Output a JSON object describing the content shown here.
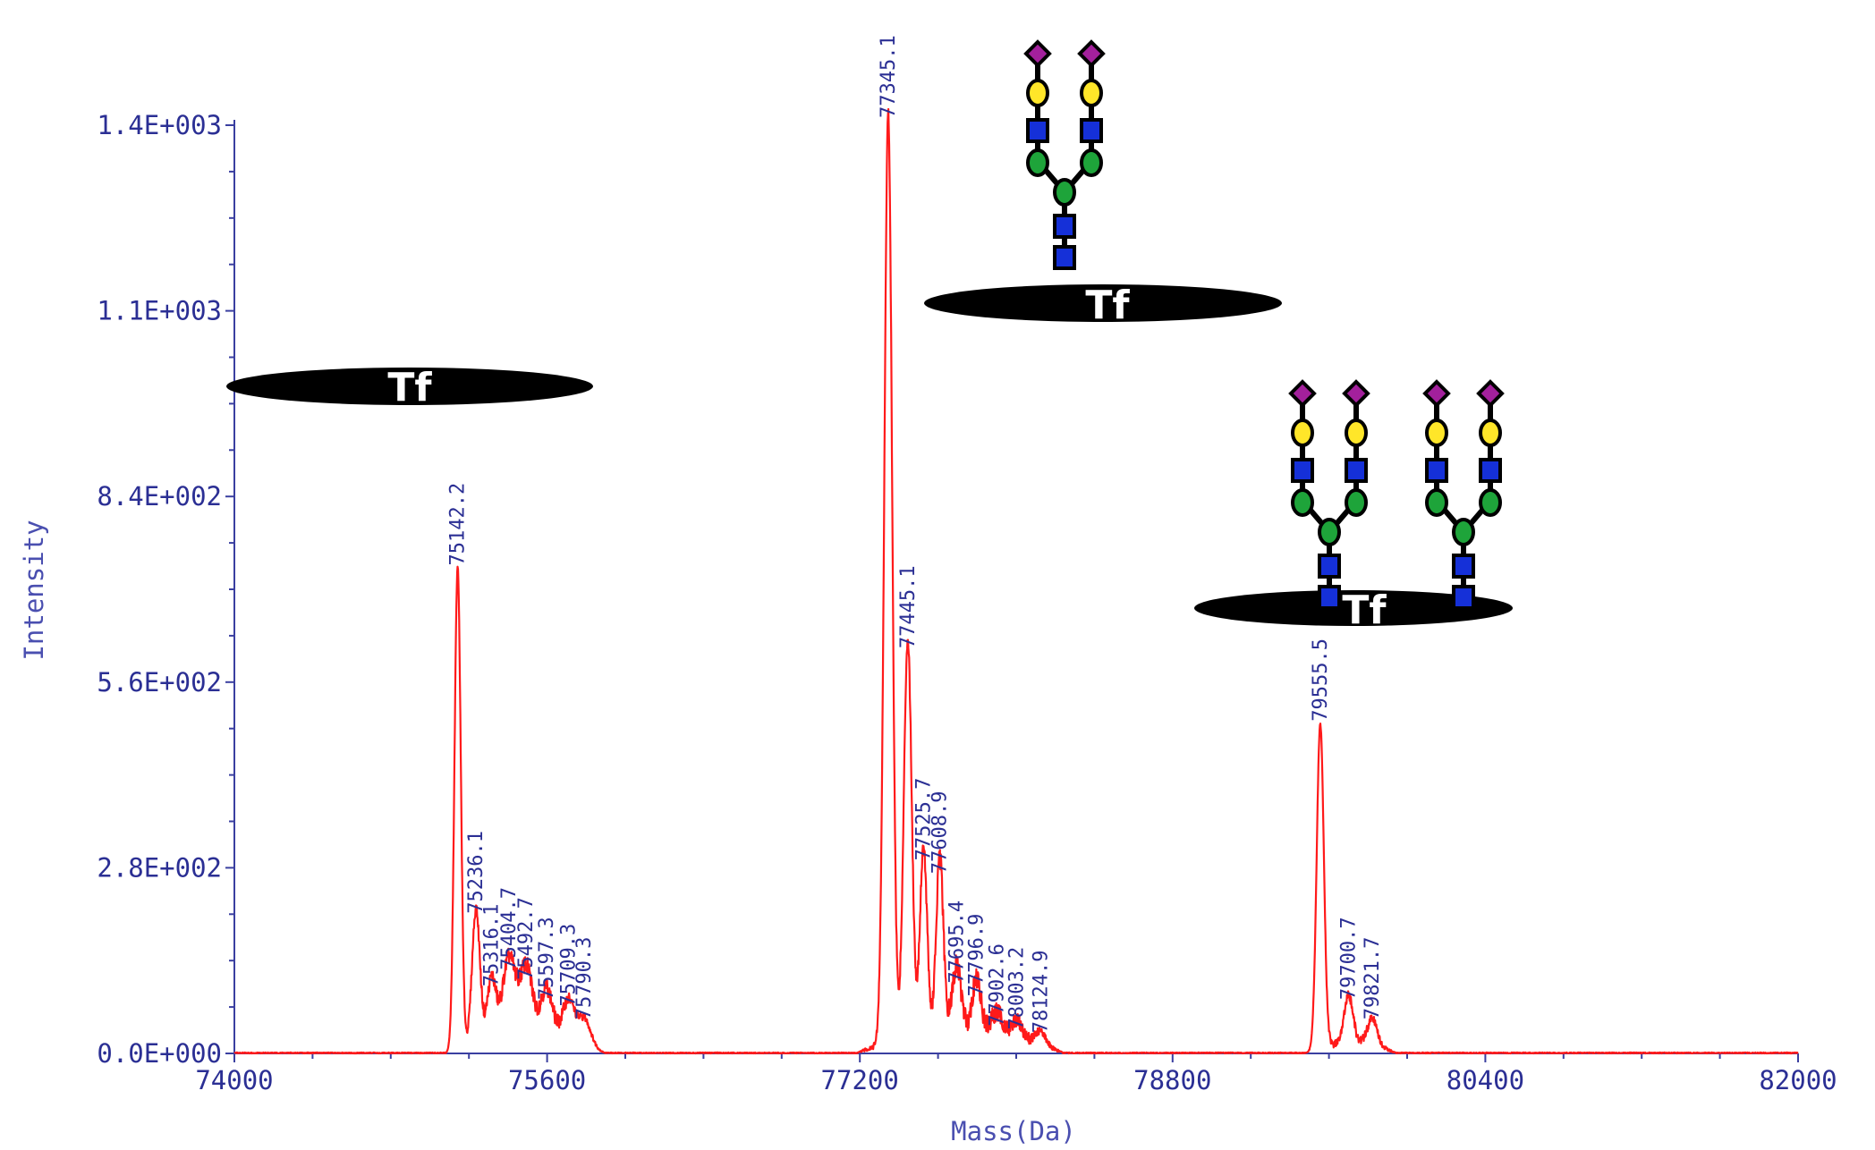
{
  "chart_data": {
    "type": "line",
    "xlabel": "Mass(Da)",
    "ylabel": "Intensity",
    "xlim": [
      74000,
      82000
    ],
    "ylim": [
      0,
      1400
    ],
    "x_ticks": [
      74000,
      75600,
      77200,
      78800,
      80400,
      82000
    ],
    "x_tick_labels": [
      "74000",
      "75600",
      "77200",
      "78800",
      "80400",
      "82000"
    ],
    "y_ticks": [
      0,
      280,
      560,
      840,
      1120,
      1400
    ],
    "y_tick_labels": [
      "0.0E+000",
      "2.8E+002",
      "5.6E+002",
      "8.4E+002",
      "1.1E+003",
      "1.4E+003"
    ],
    "series_color": "#ff1a1a",
    "axis_color": "#3a3fa0",
    "peaks": [
      {
        "x": 75142.2,
        "y": 725,
        "w": 16,
        "label": "75142.2"
      },
      {
        "x": 75236.1,
        "y": 200,
        "w": 20,
        "label": "75236.1"
      },
      {
        "x": 75316.1,
        "y": 90,
        "w": 22,
        "label": "75316.1"
      },
      {
        "x": 75404.7,
        "y": 115,
        "w": 32,
        "label": "75404.7"
      },
      {
        "x": 75492.7,
        "y": 100,
        "w": 32,
        "label": "75492.7"
      },
      {
        "x": 75597.3,
        "y": 70,
        "w": 30,
        "label": "75597.3"
      },
      {
        "x": 75709.3,
        "y": 60,
        "w": 30,
        "label": "75709.3"
      },
      {
        "x": 75790.3,
        "y": 40,
        "w": 32,
        "label": "75790.3"
      },
      {
        "x": 77345.1,
        "y": 1400,
        "w": 20,
        "label": "77345.1"
      },
      {
        "x": 77445.1,
        "y": 600,
        "w": 20,
        "label": "77445.1"
      },
      {
        "x": 77525.7,
        "y": 280,
        "w": 18,
        "label": "77525.7"
      },
      {
        "x": 77608.9,
        "y": 260,
        "w": 18,
        "label": "77608.9"
      },
      {
        "x": 77695.4,
        "y": 95,
        "w": 22,
        "label": "77695.4"
      },
      {
        "x": 77796.9,
        "y": 75,
        "w": 22,
        "label": "77796.9"
      },
      {
        "x": 77902.6,
        "y": 30,
        "w": 26,
        "label": "77902.6"
      },
      {
        "x": 78003.2,
        "y": 25,
        "w": 26,
        "label": "78003.2"
      },
      {
        "x": 78124.9,
        "y": 20,
        "w": 26,
        "label": "78124.9"
      },
      {
        "x": 79555.5,
        "y": 490,
        "w": 18,
        "label": "79555.5"
      },
      {
        "x": 79700.7,
        "y": 70,
        "w": 22,
        "label": "79700.7"
      },
      {
        "x": 79821.7,
        "y": 40,
        "w": 24,
        "label": "79821.7"
      }
    ],
    "protein_label": "Tf"
  }
}
